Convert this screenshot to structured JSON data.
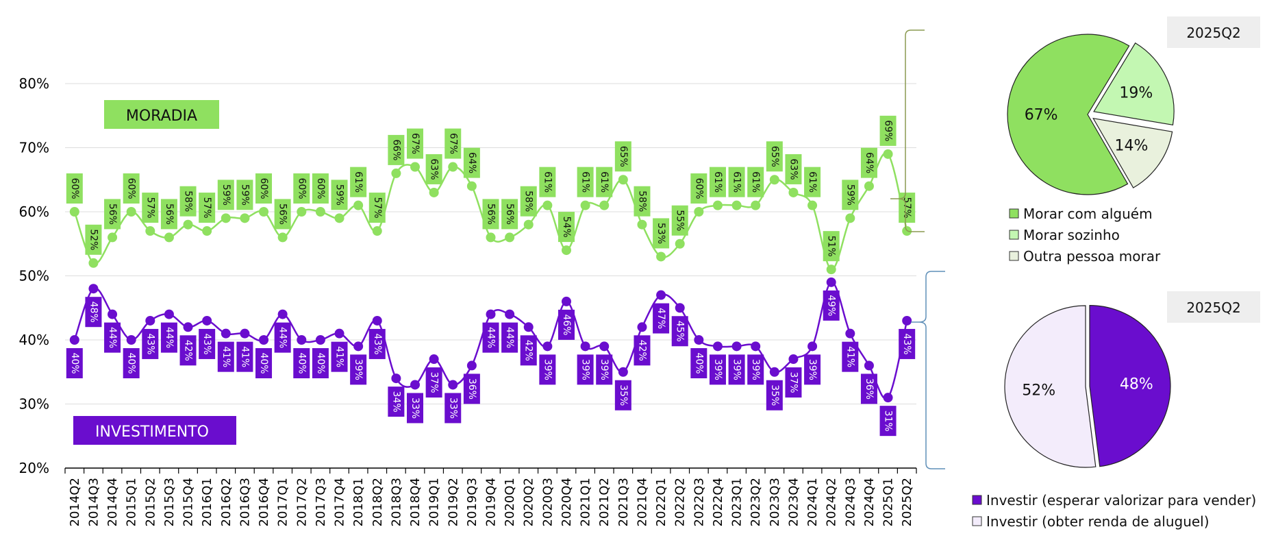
{
  "chart_data": [
    {
      "type": "line",
      "title": "",
      "xlabel": "",
      "ylabel": "",
      "ylim": [
        20,
        80
      ],
      "y_ticks": [
        "20%",
        "30%",
        "40%",
        "50%",
        "60%",
        "70%",
        "80%"
      ],
      "y_tick_values": [
        20,
        30,
        40,
        50,
        60,
        70,
        80
      ],
      "grid": true,
      "x": [
        "2014Q2",
        "2014Q3",
        "2014Q4",
        "2015Q1",
        "2015Q2",
        "2015Q3",
        "2015Q4",
        "2016Q1",
        "2016Q2",
        "2016Q3",
        "2016Q4",
        "2017Q1",
        "2017Q2",
        "2017Q3",
        "2017Q4",
        "2018Q1",
        "2018Q2",
        "2018Q3",
        "2018Q4",
        "2019Q1",
        "2019Q2",
        "2019Q3",
        "2019Q4",
        "2020Q1",
        "2020Q2",
        "2020Q3",
        "2020Q4",
        "2021Q1",
        "2021Q2",
        "2021Q3",
        "2021Q4",
        "2022Q1",
        "2022Q2",
        "2022Q3",
        "2022Q4",
        "2023Q1",
        "2023Q2",
        "2023Q3",
        "2023Q4",
        "2024Q1",
        "2024Q2",
        "2024Q3",
        "2024Q4",
        "2025Q1",
        "2025Q2"
      ],
      "series": [
        {
          "name": "MORADIA",
          "color": "#8fe060",
          "label_bg": "#8fe060",
          "label_color": "#111111",
          "values": [
            60,
            52,
            56,
            60,
            57,
            56,
            58,
            57,
            59,
            59,
            60,
            56,
            60,
            60,
            59,
            61,
            57,
            66,
            67,
            63,
            67,
            64,
            56,
            56,
            58,
            61,
            54,
            61,
            61,
            65,
            58,
            53,
            55,
            60,
            61,
            61,
            61,
            65,
            63,
            61,
            51,
            59,
            64,
            69,
            57
          ],
          "labels": [
            "60%",
            "52%",
            "56%",
            "60%",
            "57%",
            "56%",
            "58%",
            "57%",
            "59%",
            "59%",
            "60%",
            "56%",
            "60%",
            "60%",
            "59%",
            "61%",
            "57%",
            "66%",
            "67%",
            "63%",
            "67%",
            "64%",
            "56%",
            "56%",
            "58%",
            "61%",
            "54%",
            "61%",
            "61%",
            "65%",
            "58%",
            "53%",
            "55%",
            "60%",
            "61%",
            "61%",
            "61%",
            "65%",
            "63%",
            "61%",
            "51%",
            "59%",
            "64%",
            "69%",
            "57%"
          ]
        },
        {
          "name": "INVESTIMENTO",
          "color": "#6a0dce",
          "label_bg": "#6a0dce",
          "label_color": "#ffffff",
          "values": [
            40,
            48,
            44,
            40,
            43,
            44,
            42,
            43,
            41,
            41,
            40,
            44,
            40,
            40,
            41,
            39,
            43,
            34,
            33,
            37,
            33,
            36,
            44,
            44,
            42,
            39,
            46,
            39,
            39,
            35,
            42,
            47,
            45,
            40,
            39,
            39,
            39,
            35,
            37,
            39,
            49,
            41,
            36,
            31,
            43
          ],
          "labels": [
            "40%",
            "48%",
            "44%",
            "40%",
            "43%",
            "44%",
            "42%",
            "43%",
            "41%",
            "41%",
            "40%",
            "44%",
            "40%",
            "40%",
            "41%",
            "39%",
            "43%",
            "34%",
            "33%",
            "37%",
            "33%",
            "36%",
            "44%",
            "44%",
            "42%",
            "39%",
            "46%",
            "39%",
            "39%",
            "35%",
            "42%",
            "47%",
            "45%",
            "40%",
            "39%",
            "39%",
            "39%",
            "35%",
            "37%",
            "39%",
            "49%",
            "41%",
            "36%",
            "31%",
            "43%"
          ]
        }
      ],
      "series_tags": {
        "moradia": "MORADIA",
        "investimento": "INVESTIMENTO"
      }
    },
    {
      "type": "pie",
      "title": "2025Q2",
      "slices": [
        {
          "name": "Morar com alguém",
          "value": 67,
          "label": "67%",
          "color": "#8fe060",
          "text_color": "#111111"
        },
        {
          "name": "Morar sozinho",
          "value": 19,
          "label": "19%",
          "color": "#c3f7b2",
          "text_color": "#111111"
        },
        {
          "name": "Outra pessoa morar",
          "value": 14,
          "label": "14%",
          "color": "#e9f1dd",
          "text_color": "#111111"
        }
      ]
    },
    {
      "type": "pie",
      "title": "2025Q2",
      "slices": [
        {
          "name": "Investir (esperar valorizar para vender)",
          "value": 48,
          "label": "48%",
          "color": "#6a0dce",
          "text_color": "#ffffff"
        },
        {
          "name": "Investir (obter renda de aluguel)",
          "value": 52,
          "label": "52%",
          "color": "#f3ecfb",
          "text_color": "#111111"
        }
      ]
    }
  ],
  "colors": {
    "grid": "#dddddd",
    "brace_top": "#8a9a50",
    "brace_bottom": "#5f8fb8",
    "title_box": "#eeeeee"
  }
}
